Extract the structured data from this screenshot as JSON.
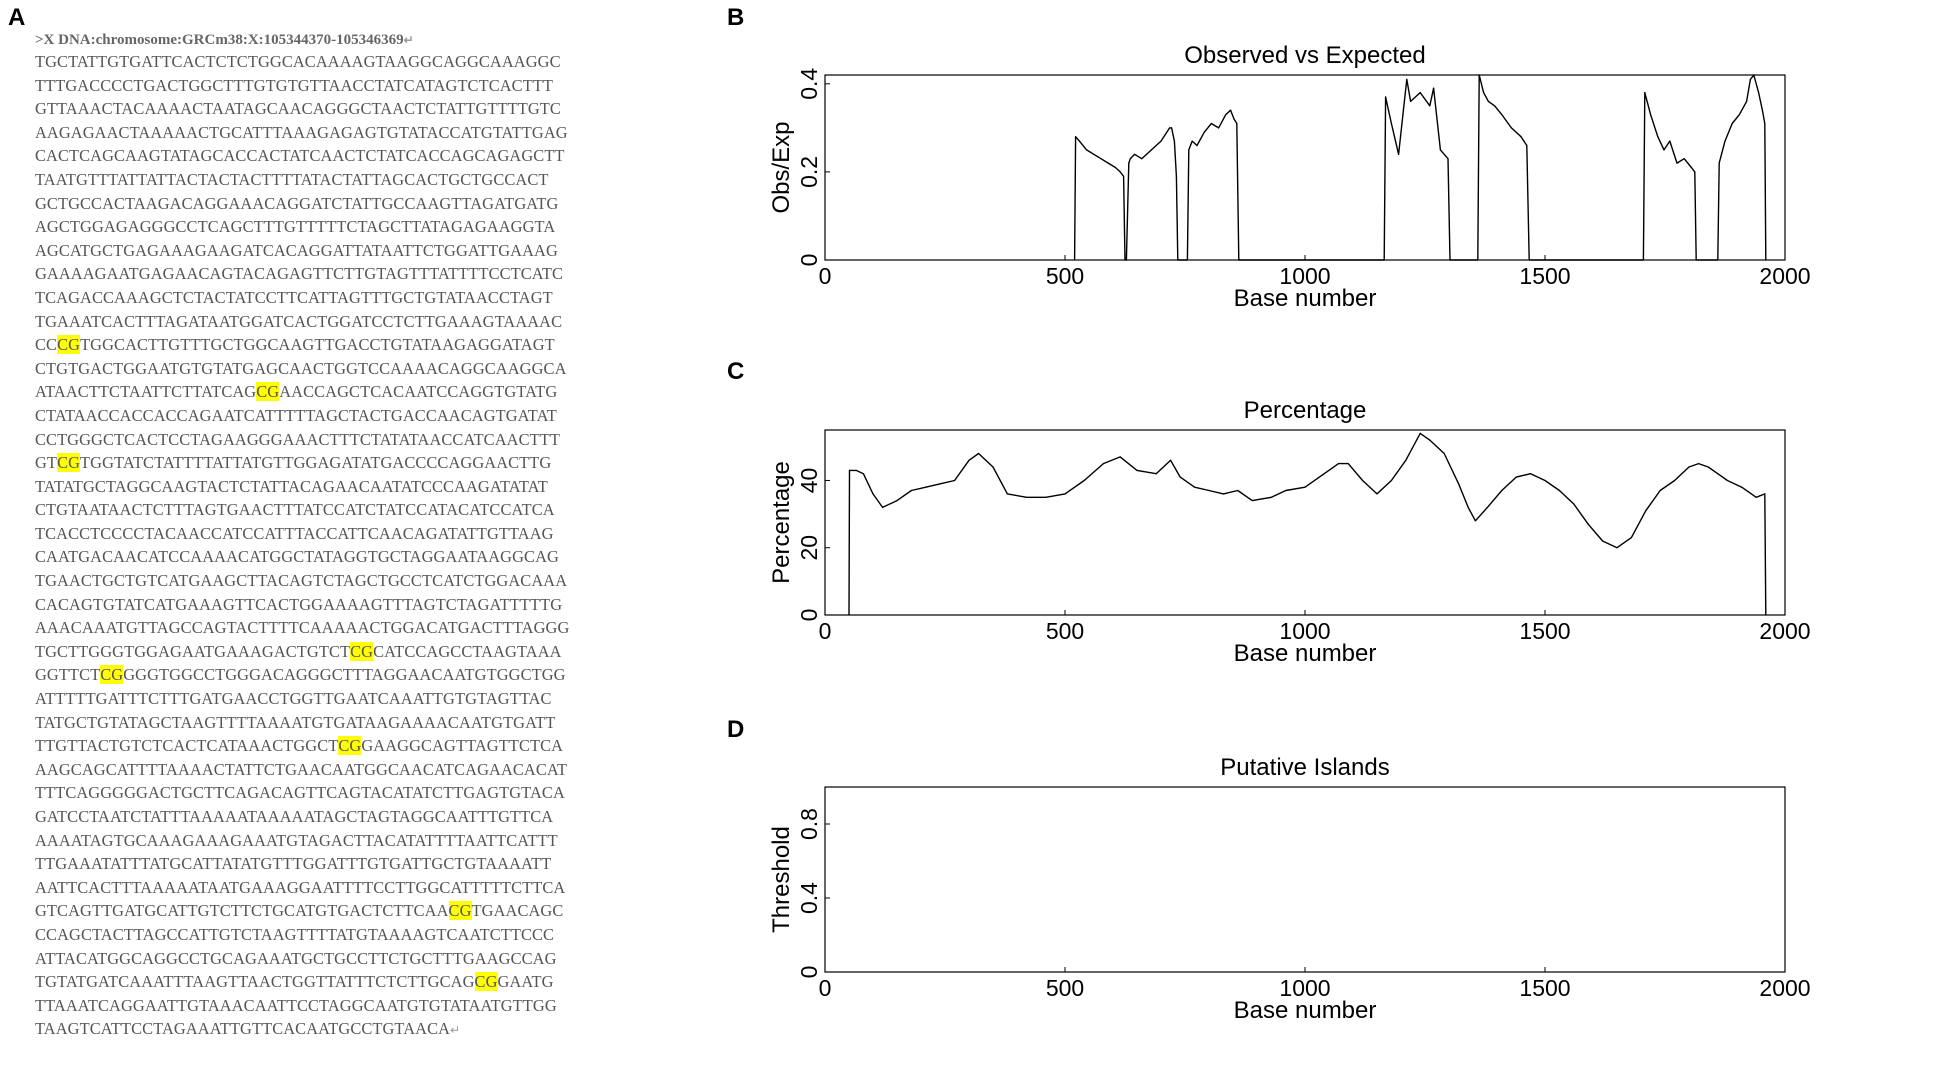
{
  "panels": {
    "a": "A",
    "b": "B",
    "c": "C",
    "d": "D"
  },
  "sequence": {
    "header": ">X DNA:chromosome:GRCm38:X:105344370-105346369",
    "return_mark": "↵",
    "highlight_color": "#ffff00",
    "lines": [
      "TGCTATTGTGATTCACTCTCTGGCACAAAAGTAAGGCAGGCAAAGGC",
      "TTTGACCCCTGACTGGCTTTGTGTGTTAACCTATCATAGTCTCACTTT",
      "GTTAAACTACAAAACTAATAGCAACAGGGCTAACTCTATTGTTTTGTC",
      "AAGAGAACTAAAAACTGCATTTAAAGAGAGTGTATACCATGTATTGAG",
      "CACTCAGCAAGTATAGCACCACTATCAACTCTATCACCAGCAGAGCTT",
      "TAATGTTTATTATTACTACTACTTTTATACTATTAGCACTGCTGCCACT",
      "GCTGCCACTAAGACAGGAAACAGGATCTATTGCCAAGTTAGATGATG",
      "AGCTGGAGAGGGCCTCAGCTTTGTTTTTCTAGCTTATAGAGAAGGTA",
      "AGCATGCTGAGAAAGAAGATCACAGGATTATAATTCTGGATTGAAAG",
      "GAAAAGAATGAGAACAGTACAGAGTTCTTGTAGTTTATTTTCCTCATC",
      "TCAGACCAAAGCTCTACTATCCTTCATTAGTTTGCTGTATAACCTAGT",
      "TGAAATCACTTTAGATAATGGATCACTGGATCCTCTTGAAAGTAAAAC",
      "CC[CG]TGGCACTTGTTTGCTGGCAAGTTGACCTGTATAAGAGGATAGT",
      "CTGTGACTGGAATGTGTATGAGCAACTGGTCCAAAACAGGCAAGGCA",
      "ATAACTTCTAATTCTTATCAG[CG]AACCAGCTCACAATCCAGGTGTATG",
      "CTATAACCACCACCAGAATCATTTTTAGCTACTGACCAACAGTGATAT",
      "CCTGGGCTCACTCCTAGAAGGGAAACTTTCTATATAACCATCAACTTT",
      "GT[CG]TGGTATCTATTTTATTATGTTGGAGATATGACCCCAGGAACTTG",
      "TATATGCTAGGCAAGTACTCTATTACAGAACAATATCCCAAGATATAT",
      "CTGTAATAACTCTTTAGTGAACTTTATCCATCTATCCATACATCCATCA",
      "TCACCTCCCCTACAACCATCCATTTACCATTCAACAGATATTGTTAAG",
      "CAATGACAACATCCAAAACATGGCTATAGGTGCTAGGAATAAGGCAG",
      "TGAACTGCTGTCATGAAGCTTACAGTCTAGCTGCCTCATCTGGACAAA",
      "CACAGTGTATCATGAAAGTTCACTGGAAAAGTTTAGTCTAGATTTTTG",
      "AAACAAATGTTAGCCAGTACTTTTCAAAAACTGGACATGACTTTAGGG",
      "TGCTTGGGTGGAGAATGAAAGACTGTCT[CG]CATCCAGCCTAAGTAAA",
      "GGTTCT[CG]GGGTGGCCTGGGACAGGGCTTTAGGAACAATGTGGCTGG",
      "ATTTTTGATTTCTTTGATGAACCTGGTTGAATCAAATTGTGTAGTTAC",
      "TATGCTGTATAGCTAAGTTTTAAAATGTGATAAGAAAACAATGTGATT",
      "TTGTTACTGTCTCACTCATAAACTGGCT[CG]GAAGGCAGTTAGTTCTCA",
      "AAGCAGCATTTTAAAACTATTCTGAACAATGGCAACATCAGAACACAT",
      "TTTCAGGGGGACTGCTTCAGACAGTTCAGTACATATCTTGAGTGTACA",
      "GATCCTAATCTATTTAAAAATAAAAATAGCTAGTAGGCAATTTGTTCA",
      "AAAATAGTGCAAAGAAAGAAATGTAGACTTACATATTTTAATTCATTT",
      "TTGAAATATTTATGCATTATATGTTTGGATTTGTGATTGCTGTAAAATT",
      "AATTCACTTTAAAAATAATGAAAGGAATTTTCCTTGGCATTTTTCTTCA",
      "GTCAGTTGATGCATTGTCTTCTGCATGTGACTCTTCAA[CG]TGAACAGC",
      "CCAGCTACTTAGCCATTGTCTAAGTTTTATGTAAAAGTCAATCTTCCC",
      "ATTACATGGCAGGCCTGCAGAAATGCTGCCTTCTGCTTTGAAGCCAG",
      "TGTATGATCAAATTTAAGTTAACTGGTTATTTCTCTTGCAG[CG]GAATG",
      "TTAAATCAGGAATTGTAAACAATTCCTAGGCAATGTGTATAATGTTGG",
      "TAAGTCATTCCTAGAAATTGTTCACAATGCCTGTAACA"
    ]
  },
  "chart_data": [
    {
      "type": "line",
      "title": "Observed vs Expected",
      "xlabel": "Base number",
      "ylabel": "Obs/Exp",
      "xlim": [
        0,
        2000
      ],
      "ylim": [
        0,
        0.42
      ],
      "xticks": [
        "0",
        "500",
        "1000",
        "1500",
        "2000"
      ],
      "yticks": [
        "0",
        "0.2",
        "0.4"
      ],
      "x": [
        520,
        522,
        530,
        545,
        560,
        575,
        590,
        605,
        615,
        622,
        625,
        628,
        633,
        636,
        645,
        660,
        680,
        700,
        712,
        718,
        722,
        728,
        732,
        735,
        740,
        755,
        758,
        765,
        775,
        790,
        805,
        820,
        835,
        845,
        852,
        858,
        862,
        1165,
        1168,
        1180,
        1195,
        1205,
        1212,
        1220,
        1240,
        1260,
        1268,
        1275,
        1282,
        1290,
        1298,
        1302,
        1360,
        1363,
        1372,
        1382,
        1395,
        1410,
        1430,
        1450,
        1462,
        1467,
        1705,
        1708,
        1720,
        1735,
        1748,
        1760,
        1775,
        1790,
        1805,
        1812,
        1815,
        1860,
        1863,
        1875,
        1890,
        1905,
        1920,
        1928,
        1935,
        1945,
        1953,
        1958,
        1960
      ],
      "y": [
        0,
        0.28,
        0.27,
        0.25,
        0.24,
        0.23,
        0.22,
        0.21,
        0.2,
        0.19,
        0,
        0,
        0.22,
        0.23,
        0.24,
        0.23,
        0.25,
        0.27,
        0.29,
        0.3,
        0.3,
        0.27,
        0.19,
        0,
        0,
        0,
        0.25,
        0.27,
        0.26,
        0.29,
        0.31,
        0.3,
        0.33,
        0.34,
        0.32,
        0.31,
        0,
        0,
        0.37,
        0.31,
        0.24,
        0.34,
        0.41,
        0.36,
        0.38,
        0.35,
        0.39,
        0.32,
        0.25,
        0.24,
        0.23,
        0,
        0,
        0.42,
        0.38,
        0.36,
        0.35,
        0.33,
        0.3,
        0.28,
        0.26,
        0,
        0,
        0.38,
        0.33,
        0.28,
        0.25,
        0.27,
        0.22,
        0.23,
        0.21,
        0.2,
        0,
        0,
        0.22,
        0.27,
        0.31,
        0.33,
        0.36,
        0.41,
        0.42,
        0.38,
        0.34,
        0.31,
        0
      ]
    },
    {
      "type": "line",
      "title": "Percentage",
      "xlabel": "Base number",
      "ylabel": "Percentage",
      "xlim": [
        0,
        2000
      ],
      "ylim": [
        0,
        55
      ],
      "xticks": [
        "0",
        "500",
        "1000",
        "1500",
        "2000"
      ],
      "yticks": [
        "0",
        "20",
        "40"
      ],
      "x": [
        50,
        51,
        65,
        80,
        100,
        120,
        150,
        180,
        210,
        240,
        270,
        300,
        320,
        350,
        380,
        420,
        460,
        500,
        540,
        580,
        615,
        650,
        690,
        720,
        740,
        770,
        800,
        830,
        860,
        890,
        930,
        960,
        1000,
        1040,
        1070,
        1090,
        1120,
        1150,
        1180,
        1210,
        1240,
        1260,
        1290,
        1320,
        1340,
        1355,
        1380,
        1410,
        1440,
        1470,
        1500,
        1530,
        1560,
        1590,
        1620,
        1650,
        1680,
        1710,
        1740,
        1770,
        1800,
        1820,
        1840,
        1860,
        1880,
        1910,
        1940,
        1958,
        1960
      ],
      "y": [
        0,
        43,
        43,
        42,
        36,
        32,
        34,
        37,
        38,
        39,
        40,
        46,
        48,
        44,
        36,
        35,
        35,
        36,
        40,
        45,
        47,
        43,
        42,
        46,
        41,
        38,
        37,
        36,
        37,
        34,
        35,
        37,
        38,
        42,
        45,
        45,
        40,
        36,
        40,
        46,
        54,
        52,
        48,
        39,
        32,
        28,
        32,
        37,
        41,
        42,
        40,
        37,
        33,
        27,
        22,
        20,
        23,
        31,
        37,
        40,
        44,
        45,
        44,
        42,
        40,
        38,
        35,
        36,
        0
      ]
    },
    {
      "type": "line",
      "title": "Putative Islands",
      "xlabel": "Base number",
      "ylabel": "Threshold",
      "xlim": [
        0,
        2000
      ],
      "ylim": [
        0,
        1.0
      ],
      "xticks": [
        "0",
        "500",
        "1000",
        "1500",
        "2000"
      ],
      "yticks": [
        "0",
        "0.4",
        "0.8"
      ],
      "x": [],
      "y": []
    }
  ]
}
